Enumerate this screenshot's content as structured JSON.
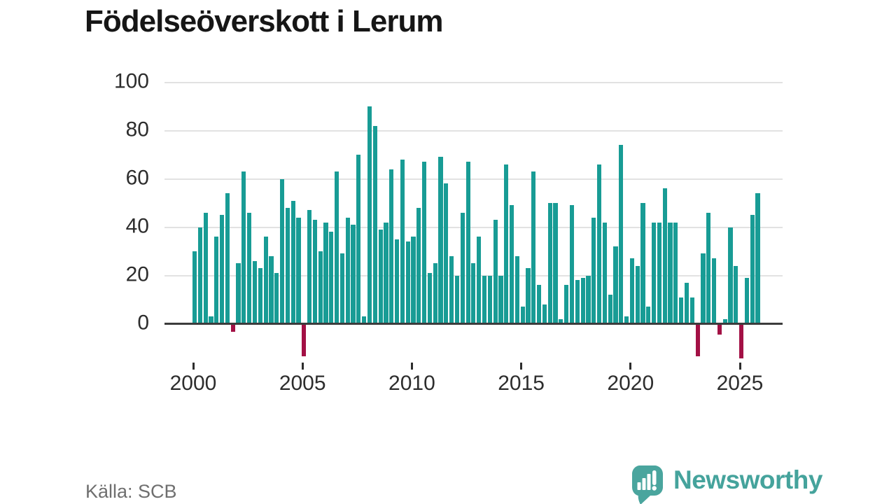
{
  "title": "Födelseöverskott i Lerum",
  "source": "Källa: SCB",
  "branding": {
    "logo_text": "Newsworthy",
    "logo_icon": "speech-bubble-bar-chart-icon"
  },
  "colors": {
    "bar_positive": "#189c95",
    "bar_negative": "#a31145",
    "axis": "#3c3c3c",
    "gridline": "#e2e2e2",
    "tick_label": "#2d2d2d",
    "title_text": "#161616",
    "source_text": "#6f6f6f",
    "brand_teal": "#45a39c"
  },
  "chart_data": {
    "type": "bar",
    "title": "Födelseöverskott i Lerum",
    "frequency": "quarterly",
    "start": "2000-Q1",
    "end": "2025-Q4",
    "xlabel": "",
    "ylabel": "",
    "ylim": [
      -16,
      100
    ],
    "grid": "horizontal",
    "legend": "none",
    "y_ticks": [
      0,
      20,
      40,
      60,
      80,
      100
    ],
    "x_tick_labels": [
      "2000",
      "2005",
      "2010",
      "2015",
      "2020",
      "2025"
    ],
    "series": [
      {
        "year": 2000,
        "values": [
          30,
          40,
          46,
          3
        ]
      },
      {
        "year": 2001,
        "values": [
          36,
          45,
          54,
          -3
        ]
      },
      {
        "year": 2002,
        "values": [
          25,
          63,
          46,
          26
        ]
      },
      {
        "year": 2003,
        "values": [
          23,
          36,
          28,
          21
        ]
      },
      {
        "year": 2004,
        "values": [
          60,
          48,
          51,
          44
        ]
      },
      {
        "year": 2005,
        "values": [
          -13,
          47,
          43,
          30
        ]
      },
      {
        "year": 2006,
        "values": [
          42,
          38,
          63,
          29
        ]
      },
      {
        "year": 2007,
        "values": [
          44,
          41,
          70,
          3
        ]
      },
      {
        "year": 2008,
        "values": [
          90,
          82,
          39,
          42
        ]
      },
      {
        "year": 2009,
        "values": [
          64,
          35,
          68,
          34
        ]
      },
      {
        "year": 2010,
        "values": [
          36,
          48,
          67,
          21
        ]
      },
      {
        "year": 2011,
        "values": [
          25,
          69,
          58,
          28
        ]
      },
      {
        "year": 2012,
        "values": [
          20,
          46,
          67,
          25
        ]
      },
      {
        "year": 2013,
        "values": [
          36,
          20,
          20,
          43
        ]
      },
      {
        "year": 2014,
        "values": [
          20,
          66,
          49,
          28
        ]
      },
      {
        "year": 2015,
        "values": [
          7,
          23,
          63,
          16
        ]
      },
      {
        "year": 2016,
        "values": [
          8,
          50,
          50,
          2
        ]
      },
      {
        "year": 2017,
        "values": [
          16,
          49,
          18,
          19
        ]
      },
      {
        "year": 2018,
        "values": [
          20,
          44,
          66,
          42
        ]
      },
      {
        "year": 2019,
        "values": [
          12,
          32,
          74,
          3
        ]
      },
      {
        "year": 2020,
        "values": [
          27,
          24,
          50,
          7
        ]
      },
      {
        "year": 2021,
        "values": [
          42,
          42,
          56,
          42
        ]
      },
      {
        "year": 2022,
        "values": [
          42,
          11,
          17,
          11
        ]
      },
      {
        "year": 2023,
        "values": [
          -13,
          29,
          46,
          27
        ]
      },
      {
        "year": 2024,
        "values": [
          -4,
          2,
          40,
          24
        ]
      },
      {
        "year": 2025,
        "values": [
          -14,
          19,
          45,
          54
        ]
      }
    ]
  }
}
